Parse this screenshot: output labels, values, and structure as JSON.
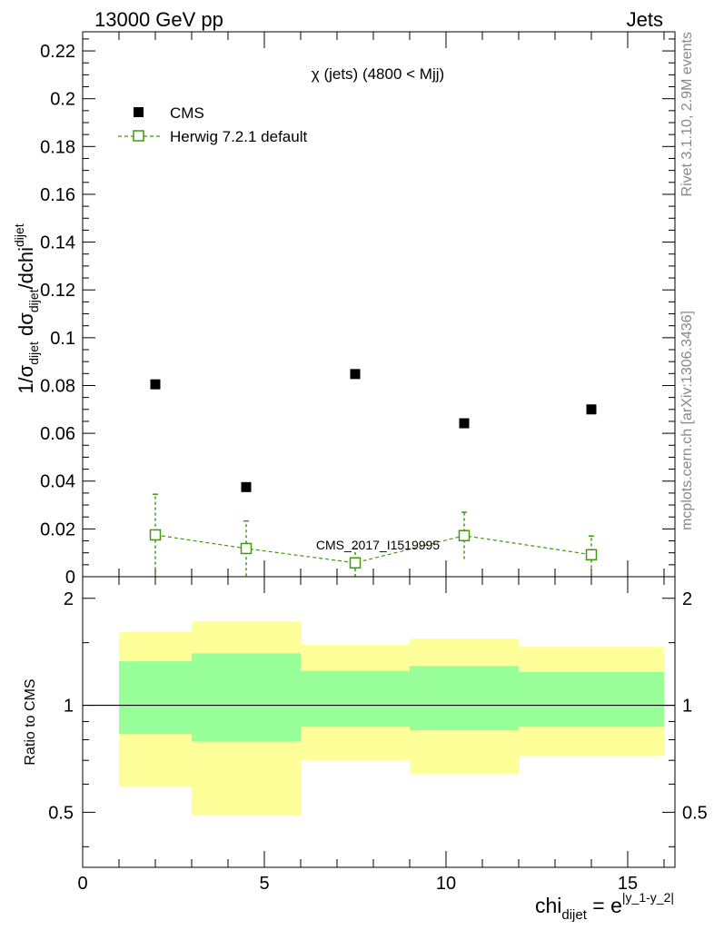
{
  "header": {
    "left": "13000 GeV pp",
    "right": "Jets"
  },
  "side_labels": {
    "rivet": "Rivet 3.1.10,  2.9M events",
    "mcplots": "mcplots.cern.ch [arXiv:1306.3436]"
  },
  "colors": {
    "cms": "#000000",
    "herwig": "#3f9a0e",
    "band_inner": "#99ff99",
    "band_outer": "#ffff99",
    "watermark": "#999999"
  },
  "chart_data": [
    {
      "type": "scatter",
      "panel": "main",
      "title": "χ (jets) (4800 < Mjj)",
      "ylabel": {
        "main": "1/σ",
        "sub1": "dijet",
        "mid": " dσ",
        "sub2": "dijet",
        "end": "/dchi",
        "sub3": "dijet"
      },
      "ylim": [
        0,
        0.228
      ],
      "xlim": [
        0,
        16.3
      ],
      "yticks": [
        0,
        0.02,
        0.04,
        0.06,
        0.08,
        0.1,
        0.12,
        0.14,
        0.16,
        0.18,
        0.2,
        0.22
      ],
      "ytick_labels": [
        "0",
        "0.02",
        "0.04",
        "0.06",
        "0.08",
        "0.1",
        "0.12",
        "0.14",
        "0.16",
        "0.18",
        "0.2",
        "0.22"
      ],
      "watermark": "CMS_2017_I1519995",
      "legend_position": "top-left",
      "series": [
        {
          "name": "CMS",
          "marker": "filled-square",
          "x": [
            2,
            4.5,
            7.5,
            10.5,
            14
          ],
          "y": [
            0.0805,
            0.0375,
            0.0848,
            0.0642,
            0.07
          ]
        },
        {
          "name": "Herwig 7.2.1 default",
          "marker": "open-square",
          "line": "dashed",
          "x": [
            2,
            4.5,
            7.5,
            10.5,
            14
          ],
          "y": [
            0.0175,
            0.0118,
            0.0058,
            0.0172,
            0.0092
          ],
          "yerr": [
            0.017,
            0.0115,
            0.006,
            0.0098,
            0.0078
          ],
          "xerr_lo": [
            1,
            1.5,
            1.5,
            1.5,
            2
          ],
          "xerr_hi": [
            1,
            1.5,
            1.5,
            1.5,
            2
          ]
        }
      ]
    },
    {
      "type": "area",
      "panel": "ratio",
      "ylabel": "Ratio to CMS",
      "xlabel": {
        "main": "chi",
        "sub": "dijet",
        "eq": " = e",
        "sup": "|y_1-y_2|"
      },
      "ylim": [
        0.35,
        2.3
      ],
      "xlim": [
        0,
        16.3
      ],
      "yscale": "log",
      "yticks": [
        0.5,
        1,
        2
      ],
      "ytick_labels": [
        "0.5",
        "1",
        "2"
      ],
      "xticks": [
        0,
        5,
        10,
        15
      ],
      "xtick_labels": [
        "0",
        "5",
        "10",
        "15"
      ],
      "reference_line": 1,
      "bins": [
        {
          "lo": 1,
          "hi": 3,
          "inner": [
            0.83,
            1.33
          ],
          "outer": [
            0.59,
            1.61
          ]
        },
        {
          "lo": 3,
          "hi": 6,
          "inner": [
            0.79,
            1.4
          ],
          "outer": [
            0.49,
            1.72
          ]
        },
        {
          "lo": 6,
          "hi": 9,
          "inner": [
            0.87,
            1.25
          ],
          "outer": [
            0.7,
            1.48
          ]
        },
        {
          "lo": 9,
          "hi": 12,
          "inner": [
            0.85,
            1.29
          ],
          "outer": [
            0.64,
            1.54
          ]
        },
        {
          "lo": 12,
          "hi": 16,
          "inner": [
            0.87,
            1.24
          ],
          "outer": [
            0.72,
            1.46
          ]
        }
      ]
    }
  ]
}
